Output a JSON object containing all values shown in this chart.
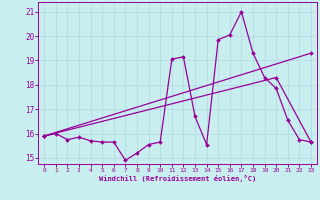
{
  "xlabel": "Windchill (Refroidissement éolien,°C)",
  "bg_color": "#c8eef0",
  "grid_color": "#b0d8dc",
  "line_color": "#990099",
  "xlim": [
    -0.5,
    23.5
  ],
  "ylim": [
    14.75,
    21.4
  ],
  "xticks": [
    0,
    1,
    2,
    3,
    4,
    5,
    6,
    7,
    8,
    9,
    10,
    11,
    12,
    13,
    14,
    15,
    16,
    17,
    18,
    19,
    20,
    21,
    22,
    23
  ],
  "yticks": [
    15,
    16,
    17,
    18,
    19,
    20,
    21
  ],
  "line1_x": [
    0,
    1,
    2,
    3,
    4,
    5,
    6,
    7,
    8,
    9,
    10,
    11,
    12,
    13,
    14,
    15,
    16,
    17,
    18,
    19,
    20,
    21,
    22,
    23
  ],
  "line1_y": [
    15.9,
    16.0,
    15.75,
    15.85,
    15.7,
    15.65,
    15.65,
    14.9,
    15.2,
    15.55,
    15.65,
    19.05,
    19.15,
    16.7,
    15.55,
    19.85,
    20.05,
    21.0,
    19.3,
    18.3,
    17.85,
    16.55,
    15.75,
    15.65
  ],
  "line2_x": [
    0,
    23
  ],
  "line2_y": [
    15.9,
    19.3
  ],
  "line3_x": [
    0,
    20,
    23
  ],
  "line3_y": [
    15.9,
    18.3,
    15.65
  ]
}
